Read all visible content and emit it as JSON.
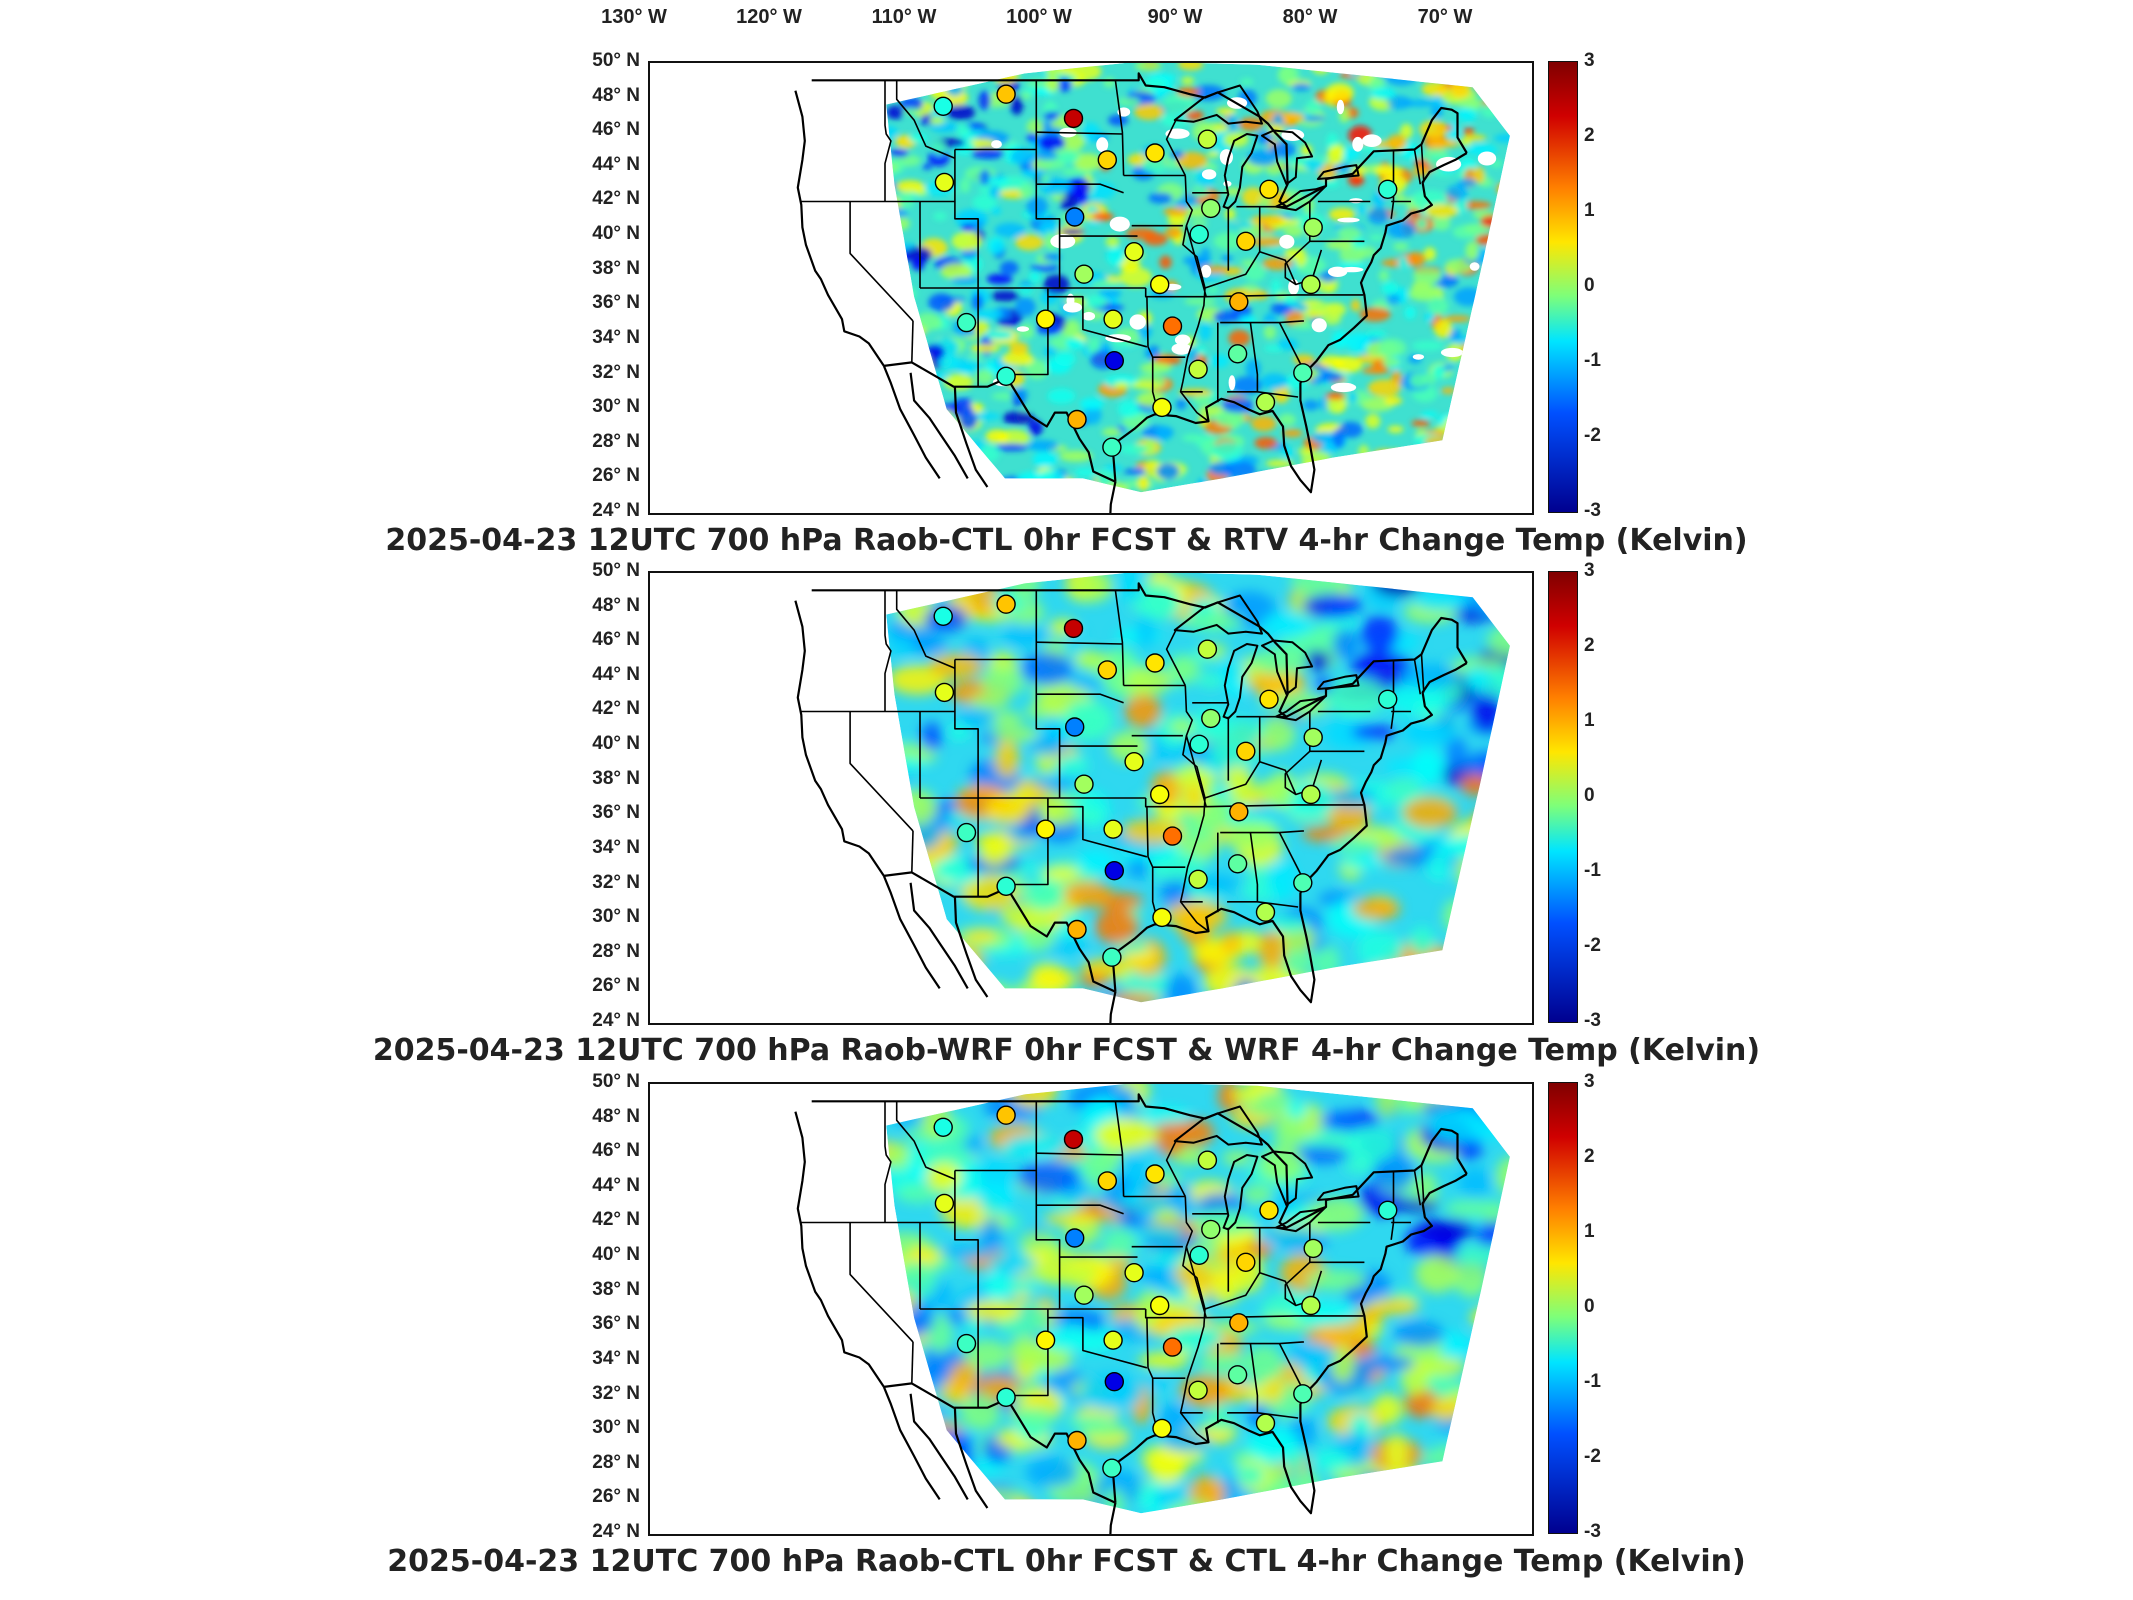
{
  "lon_labels": [
    "130° W",
    "120° W",
    "110° W",
    "100° W",
    "90° W",
    "80° W",
    "70° W"
  ],
  "lat_labels": [
    "50° N",
    "48° N",
    "46° N",
    "44° N",
    "42° N",
    "40° N",
    "38° N",
    "36° N",
    "34° N",
    "32° N",
    "30° N",
    "28° N",
    "26° N",
    "24° N"
  ],
  "colorbar": {
    "range": [
      -3,
      3
    ],
    "ticks": [
      "3",
      "2",
      "1",
      "0",
      "-1",
      "-2",
      "-3"
    ],
    "colormap": "jet"
  },
  "colors": {
    "blue_dark": "#00008f",
    "blue": "#0050ff",
    "cyan": "#00e5ff",
    "green": "#7dff7a",
    "yellow": "#ffe600",
    "orange": "#ff8000",
    "red": "#d00000",
    "red_dark": "#800000"
  },
  "panels": [
    {
      "title": "2025-04-23 12UTC 700 hPa Raob-CTL 0hr FCST & RTV 4-hr Change Temp (Kelvin)"
    },
    {
      "title": "2025-04-23 12UTC 700 hPa Raob-WRF 0hr FCST & WRF 4-hr Change Temp (Kelvin)"
    },
    {
      "title": "2025-04-23 12UTC 700 hPa Raob-CTL 0hr FCST & CTL 4-hr Change Temp (Kelvin)"
    }
  ],
  "raob_stations": [
    {
      "lon": -112.0,
      "lat": 47.5,
      "value": -0.6
    },
    {
      "lon": -106.6,
      "lat": 48.2,
      "value": 1.1
    },
    {
      "lon": -100.8,
      "lat": 46.8,
      "value": 2.6
    },
    {
      "lon": -111.9,
      "lat": 43.1,
      "value": 0.6
    },
    {
      "lon": -97.9,
      "lat": 44.4,
      "value": 1.0
    },
    {
      "lon": -100.7,
      "lat": 41.1,
      "value": -1.5
    },
    {
      "lon": -89.3,
      "lat": 45.6,
      "value": 0.4
    },
    {
      "lon": -93.8,
      "lat": 44.8,
      "value": 0.9
    },
    {
      "lon": -84.0,
      "lat": 42.7,
      "value": 0.9
    },
    {
      "lon": -89.0,
      "lat": 41.6,
      "value": 0.1
    },
    {
      "lon": -90.0,
      "lat": 40.1,
      "value": -0.5
    },
    {
      "lon": -86.0,
      "lat": 39.7,
      "value": 1.0
    },
    {
      "lon": -80.2,
      "lat": 40.5,
      "value": 0.2
    },
    {
      "lon": -73.8,
      "lat": 42.7,
      "value": -0.5
    },
    {
      "lon": -95.6,
      "lat": 39.1,
      "value": 0.6
    },
    {
      "lon": -99.9,
      "lat": 37.8,
      "value": 0.2
    },
    {
      "lon": -93.4,
      "lat": 37.2,
      "value": 0.7
    },
    {
      "lon": -86.6,
      "lat": 36.2,
      "value": 1.2
    },
    {
      "lon": -80.4,
      "lat": 37.2,
      "value": 0.3
    },
    {
      "lon": -110.0,
      "lat": 35.0,
      "value": -0.4
    },
    {
      "lon": -103.2,
      "lat": 35.2,
      "value": 0.8
    },
    {
      "lon": -97.4,
      "lat": 35.2,
      "value": 0.6
    },
    {
      "lon": -92.3,
      "lat": 34.8,
      "value": 1.6
    },
    {
      "lon": -97.3,
      "lat": 32.8,
      "value": -2.4
    },
    {
      "lon": -90.1,
      "lat": 32.3,
      "value": 0.4
    },
    {
      "lon": -86.7,
      "lat": 33.2,
      "value": -0.2
    },
    {
      "lon": -81.1,
      "lat": 32.1,
      "value": -0.3
    },
    {
      "lon": -106.6,
      "lat": 31.9,
      "value": -0.5
    },
    {
      "lon": -100.5,
      "lat": 29.4,
      "value": 1.2
    },
    {
      "lon": -97.5,
      "lat": 27.8,
      "value": -0.4
    },
    {
      "lon": -93.2,
      "lat": 30.1,
      "value": 0.7
    },
    {
      "lon": -84.3,
      "lat": 30.4,
      "value": 0.3
    }
  ]
}
